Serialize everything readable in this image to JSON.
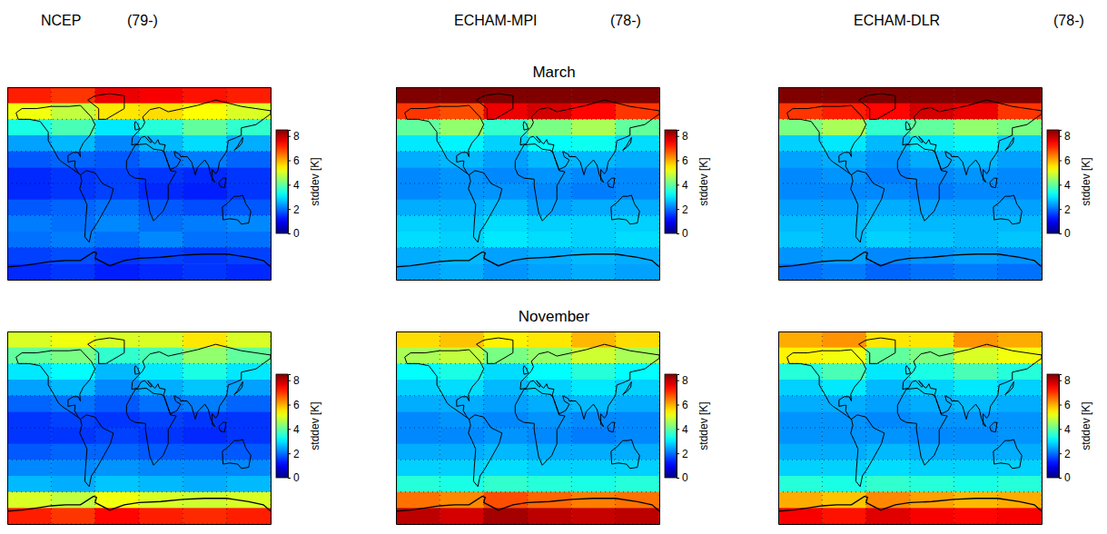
{
  "columns": [
    {
      "model": "NCEP",
      "period": "(79-)"
    },
    {
      "model": "ECHAM-MPI",
      "period": "(78-)"
    },
    {
      "model": "ECHAM-DLR",
      "period": "(78-)"
    }
  ],
  "rows": [
    "March",
    "November"
  ],
  "chart_data": [
    {
      "type": "heatmap",
      "x": [
        -150,
        -90,
        -30,
        30,
        90,
        150
      ],
      "y": [
        82.5,
        67.5,
        52.5,
        37.5,
        22.5,
        7.5,
        -7.5,
        -22.5,
        -37.5,
        -52.5,
        -67.5,
        -82.5
      ],
      "xlim": [
        -180,
        180
      ],
      "ylim": [
        -90,
        90
      ],
      "xticks": [
        -180,
        -120,
        -60,
        0,
        60,
        120,
        180
      ],
      "yticks": [
        -90,
        -60,
        -30,
        0,
        30,
        60,
        90
      ],
      "grid": true,
      "tick_labels": false,
      "cells": [
        [
          7.2,
          7.0,
          7.6,
          7.5,
          7.3,
          7.2
        ],
        [
          5.2,
          4.8,
          5.5,
          5.6,
          5.3,
          5.0
        ],
        [
          3.4,
          3.8,
          3.0,
          3.5,
          4.0,
          3.6
        ],
        [
          2.4,
          2.6,
          2.2,
          2.6,
          2.9,
          2.5
        ],
        [
          1.8,
          1.9,
          1.8,
          2.0,
          2.1,
          1.9
        ],
        [
          1.4,
          1.5,
          1.6,
          1.5,
          1.4,
          1.5
        ],
        [
          1.4,
          1.5,
          1.6,
          1.4,
          1.3,
          1.5
        ],
        [
          1.8,
          1.9,
          2.0,
          1.8,
          1.7,
          1.8
        ],
        [
          2.1,
          2.0,
          2.2,
          2.0,
          2.1,
          2.2
        ],
        [
          2.0,
          2.1,
          2.0,
          2.2,
          2.0,
          2.0
        ],
        [
          1.6,
          1.7,
          1.5,
          1.6,
          1.5,
          1.6
        ],
        [
          1.4,
          1.5,
          1.3,
          1.4,
          1.5,
          1.4
        ]
      ],
      "colorbar": {
        "range": [
          0,
          8.5
        ],
        "ticks": [
          0,
          2,
          4,
          6,
          8
        ],
        "label": "stddev [K]"
      }
    },
    {
      "type": "heatmap",
      "x": [
        -150,
        -90,
        -30,
        30,
        90,
        150
      ],
      "y": [
        82.5,
        67.5,
        52.5,
        37.5,
        22.5,
        7.5,
        -7.5,
        -22.5,
        -37.5,
        -52.5,
        -67.5,
        -82.5
      ],
      "xlim": [
        -180,
        180
      ],
      "ylim": [
        -90,
        90
      ],
      "xticks": [
        -180,
        -120,
        -60,
        0,
        60,
        120,
        180
      ],
      "yticks": [
        -90,
        -60,
        -30,
        0,
        30,
        60,
        90
      ],
      "grid": true,
      "tick_labels": false,
      "cells": [
        [
          8.5,
          8.5,
          8.5,
          8.5,
          8.5,
          8.5
        ],
        [
          7.0,
          6.8,
          7.6,
          7.8,
          7.4,
          7.0
        ],
        [
          4.0,
          4.4,
          3.6,
          4.2,
          4.6,
          4.0
        ],
        [
          3.0,
          3.1,
          2.8,
          3.2,
          3.3,
          2.9
        ],
        [
          2.5,
          2.6,
          2.4,
          2.6,
          2.6,
          2.5
        ],
        [
          2.2,
          2.3,
          2.2,
          2.3,
          2.2,
          2.2
        ],
        [
          2.2,
          2.3,
          2.3,
          2.2,
          2.1,
          2.2
        ],
        [
          2.5,
          2.5,
          2.6,
          2.4,
          2.5,
          2.5
        ],
        [
          2.8,
          2.7,
          2.9,
          2.8,
          2.8,
          2.8
        ],
        [
          2.9,
          2.8,
          3.0,
          2.9,
          2.8,
          2.9
        ],
        [
          2.5,
          2.6,
          2.4,
          2.5,
          2.6,
          2.5
        ],
        [
          2.4,
          2.5,
          2.3,
          2.4,
          2.5,
          2.4
        ]
      ],
      "colorbar": {
        "range": [
          0,
          8.5
        ],
        "ticks": [
          0,
          2,
          4,
          6,
          8
        ],
        "label": "stddev [K]"
      }
    },
    {
      "type": "heatmap",
      "x": [
        -150,
        -90,
        -30,
        30,
        90,
        150
      ],
      "y": [
        82.5,
        67.5,
        52.5,
        37.5,
        22.5,
        7.5,
        -7.5,
        -22.5,
        -37.5,
        -52.5,
        -67.5,
        -82.5
      ],
      "xlim": [
        -180,
        180
      ],
      "ylim": [
        -90,
        90
      ],
      "xticks": [
        -180,
        -120,
        -60,
        0,
        60,
        120,
        180
      ],
      "yticks": [
        -90,
        -60,
        -30,
        0,
        30,
        60,
        90
      ],
      "grid": true,
      "tick_labels": false,
      "cells": [
        [
          8.5,
          8.5,
          8.5,
          8.5,
          8.5,
          8.5
        ],
        [
          7.0,
          7.2,
          7.4,
          7.8,
          7.6,
          7.0
        ],
        [
          4.2,
          4.6,
          3.6,
          4.0,
          4.4,
          4.2
        ],
        [
          2.8,
          3.0,
          2.6,
          3.0,
          3.1,
          2.8
        ],
        [
          2.4,
          2.5,
          2.3,
          2.5,
          2.6,
          2.4
        ],
        [
          2.2,
          2.3,
          2.1,
          2.2,
          2.3,
          2.2
        ],
        [
          2.2,
          2.2,
          2.2,
          2.1,
          2.2,
          2.2
        ],
        [
          2.4,
          2.4,
          2.5,
          2.4,
          2.4,
          2.4
        ],
        [
          2.6,
          2.6,
          2.7,
          2.6,
          2.6,
          2.6
        ],
        [
          2.7,
          2.6,
          2.8,
          2.7,
          2.6,
          2.7
        ],
        [
          2.3,
          2.4,
          2.2,
          2.3,
          2.4,
          2.3
        ],
        [
          2.0,
          2.1,
          1.9,
          2.0,
          2.1,
          2.0
        ]
      ],
      "colorbar": {
        "range": [
          0,
          8.5
        ],
        "ticks": [
          0,
          2,
          4,
          6,
          8
        ],
        "label": "stddev [K]"
      }
    },
    {
      "type": "heatmap",
      "x": [
        -150,
        -90,
        -30,
        30,
        90,
        150
      ],
      "y": [
        82.5,
        67.5,
        52.5,
        37.5,
        22.5,
        7.5,
        -7.5,
        -22.5,
        -37.5,
        -52.5,
        -67.5,
        -82.5
      ],
      "xlim": [
        -180,
        180
      ],
      "ylim": [
        -90,
        90
      ],
      "xticks": [
        -180,
        -120,
        -60,
        0,
        60,
        120,
        180
      ],
      "yticks": [
        -90,
        -60,
        -30,
        0,
        30,
        60,
        90
      ],
      "grid": true,
      "tick_labels": false,
      "cells": [
        [
          5.0,
          5.2,
          5.0,
          5.0,
          5.5,
          5.0
        ],
        [
          4.0,
          4.2,
          3.6,
          3.8,
          4.4,
          4.0
        ],
        [
          3.0,
          3.2,
          2.6,
          3.0,
          3.4,
          3.0
        ],
        [
          2.4,
          2.6,
          2.2,
          2.5,
          2.7,
          2.4
        ],
        [
          1.9,
          2.0,
          1.8,
          2.0,
          2.1,
          1.9
        ],
        [
          1.5,
          1.6,
          1.5,
          1.6,
          1.5,
          1.5
        ],
        [
          1.5,
          1.5,
          1.6,
          1.5,
          1.4,
          1.5
        ],
        [
          1.8,
          1.9,
          1.9,
          1.8,
          1.8,
          1.8
        ],
        [
          2.2,
          2.2,
          2.3,
          2.2,
          2.2,
          2.2
        ],
        [
          2.6,
          2.5,
          2.7,
          2.6,
          2.5,
          2.6
        ],
        [
          5.0,
          4.8,
          5.2,
          5.0,
          4.9,
          5.0
        ],
        [
          7.2,
          7.0,
          7.4,
          7.2,
          7.1,
          7.2
        ]
      ],
      "colorbar": {
        "range": [
          0,
          8.5
        ],
        "ticks": [
          0,
          2,
          4,
          6,
          8
        ],
        "label": "stddev [K]"
      }
    },
    {
      "type": "heatmap",
      "x": [
        -150,
        -90,
        -30,
        30,
        90,
        150
      ],
      "y": [
        82.5,
        67.5,
        52.5,
        37.5,
        22.5,
        7.5,
        -7.5,
        -22.5,
        -37.5,
        -52.5,
        -67.5,
        -82.5
      ],
      "xlim": [
        -180,
        180
      ],
      "ylim": [
        -90,
        90
      ],
      "xticks": [
        -180,
        -120,
        -60,
        0,
        60,
        120,
        180
      ],
      "yticks": [
        -90,
        -60,
        -30,
        0,
        30,
        60,
        90
      ],
      "grid": true,
      "tick_labels": false,
      "cells": [
        [
          5.6,
          5.8,
          5.4,
          5.5,
          5.9,
          5.6
        ],
        [
          4.6,
          4.8,
          4.2,
          4.4,
          4.9,
          4.6
        ],
        [
          3.2,
          3.4,
          2.9,
          3.2,
          3.5,
          3.2
        ],
        [
          2.8,
          2.9,
          2.6,
          2.8,
          3.0,
          2.8
        ],
        [
          2.5,
          2.5,
          2.4,
          2.5,
          2.6,
          2.5
        ],
        [
          2.2,
          2.3,
          2.2,
          2.3,
          2.2,
          2.2
        ],
        [
          2.2,
          2.2,
          2.3,
          2.2,
          2.1,
          2.2
        ],
        [
          2.5,
          2.5,
          2.6,
          2.5,
          2.5,
          2.5
        ],
        [
          2.8,
          2.8,
          2.9,
          2.8,
          2.8,
          2.8
        ],
        [
          3.5,
          3.4,
          3.6,
          3.5,
          3.4,
          3.5
        ],
        [
          6.5,
          6.3,
          6.8,
          6.6,
          6.4,
          6.5
        ],
        [
          8.0,
          7.8,
          8.2,
          8.0,
          7.9,
          8.0
        ]
      ],
      "colorbar": {
        "range": [
          0,
          8.5
        ],
        "ticks": [
          0,
          2,
          4,
          6,
          8
        ],
        "label": "stddev [K]"
      }
    },
    {
      "type": "heatmap",
      "x": [
        -150,
        -90,
        -30,
        30,
        90,
        150
      ],
      "y": [
        82.5,
        67.5,
        52.5,
        37.5,
        22.5,
        7.5,
        -7.5,
        -22.5,
        -37.5,
        -52.5,
        -67.5,
        -82.5
      ],
      "xlim": [
        -180,
        180
      ],
      "ylim": [
        -90,
        90
      ],
      "xticks": [
        -180,
        -120,
        -60,
        0,
        60,
        120,
        180
      ],
      "yticks": [
        -90,
        -60,
        -30,
        0,
        30,
        60,
        90
      ],
      "grid": true,
      "tick_labels": false,
      "cells": [
        [
          6.0,
          6.2,
          5.5,
          5.5,
          6.2,
          6.0
        ],
        [
          5.4,
          5.2,
          4.0,
          4.2,
          5.0,
          5.2
        ],
        [
          3.5,
          3.8,
          3.0,
          3.4,
          3.8,
          3.5
        ],
        [
          2.8,
          3.0,
          2.6,
          2.8,
          3.0,
          2.8
        ],
        [
          2.5,
          2.5,
          2.4,
          2.5,
          2.6,
          2.5
        ],
        [
          2.3,
          2.3,
          2.2,
          2.3,
          2.3,
          2.3
        ],
        [
          2.3,
          2.3,
          2.3,
          2.2,
          2.2,
          2.3
        ],
        [
          2.5,
          2.5,
          2.6,
          2.5,
          2.5,
          2.5
        ],
        [
          2.8,
          2.8,
          2.9,
          2.8,
          2.8,
          2.8
        ],
        [
          3.5,
          3.4,
          3.6,
          3.5,
          3.4,
          3.5
        ],
        [
          6.0,
          5.8,
          6.3,
          6.1,
          5.9,
          6.0
        ],
        [
          7.5,
          7.3,
          7.7,
          7.5,
          7.4,
          7.5
        ]
      ],
      "colorbar": {
        "range": [
          0,
          8.5
        ],
        "ticks": [
          0,
          2,
          4,
          6,
          8
        ],
        "label": "stddev [K]"
      }
    }
  ]
}
